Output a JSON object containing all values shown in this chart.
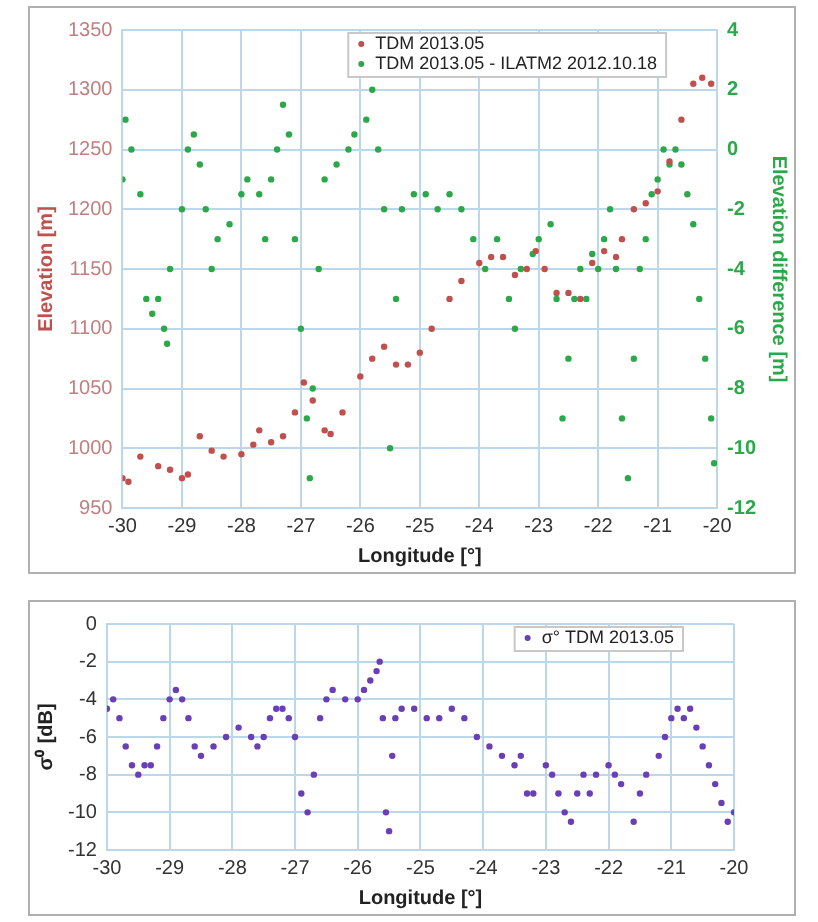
{
  "chart_data": [
    {
      "type": "scatter",
      "xlabel": "Longitude [°]",
      "ylabel": "Elevation [m]",
      "y2label": "Elevation difference [m]",
      "xlim": [
        -30,
        -20
      ],
      "xticks": [
        -30,
        -29,
        -28,
        -27,
        -26,
        -25,
        -24,
        -23,
        -22,
        -21,
        -20
      ],
      "ylim": [
        950,
        1350
      ],
      "yticks": [
        950,
        1000,
        1050,
        1100,
        1150,
        1200,
        1250,
        1300,
        1350
      ],
      "y2lim": [
        -12,
        4
      ],
      "y2ticks": [
        -12,
        -10,
        -8,
        -6,
        -4,
        -2,
        0,
        2,
        4
      ],
      "grid": true,
      "legend": "top right",
      "marker": "circle",
      "series": [
        {
          "name": "TDM 2013.05",
          "color": "#c0504d",
          "x": [
            -30,
            -29.9,
            -29.7,
            -29.4,
            -29.2,
            -29,
            -28.9,
            -28.7,
            -28.5,
            -28.3,
            -28,
            -27.8,
            -27.7,
            -27.5,
            -27.3,
            -27.1,
            -26.95,
            -26.8,
            -26.6,
            -26.5,
            -26.3,
            -26,
            -25.8,
            -25.6,
            -25.4,
            -25.2,
            -25,
            -24.8,
            -24.5,
            -24.3,
            -24,
            -23.8,
            -23.6,
            -23.4,
            -23.2,
            -23.05,
            -22.9,
            -22.7,
            -22.5,
            -22.3,
            -22.1,
            -21.9,
            -21.7,
            -21.6,
            -21.4,
            -21.2,
            -21,
            -20.8,
            -20.6,
            -20.4,
            -20.25,
            -20.1
          ],
          "values": [
            975,
            972,
            993,
            985,
            982,
            975,
            978,
            1010,
            998,
            993,
            995,
            1003,
            1015,
            1005,
            1010,
            1030,
            1055,
            1040,
            1015,
            1012,
            1030,
            1060,
            1075,
            1085,
            1070,
            1070,
            1080,
            1100,
            1125,
            1140,
            1155,
            1160,
            1160,
            1145,
            1150,
            1165,
            1150,
            1130,
            1130,
            1125,
            1155,
            1165,
            1160,
            1175,
            1200,
            1205,
            1215,
            1240,
            1275,
            1305,
            1310,
            1305
          ]
        },
        {
          "name": "TDM 2013.05 - ILATM2 2012.10.18",
          "color": "#2ca84a",
          "axis": "y2",
          "x": [
            -30,
            -29.95,
            -29.85,
            -29.7,
            -29.6,
            -29.5,
            -29.4,
            -29.3,
            -29.25,
            -29.2,
            -29,
            -28.9,
            -28.8,
            -28.7,
            -28.6,
            -28.5,
            -28.4,
            -28.2,
            -28,
            -27.9,
            -27.7,
            -27.6,
            -27.5,
            -27.4,
            -27.3,
            -27.2,
            -27.1,
            -27,
            -26.9,
            -26.85,
            -26.8,
            -26.7,
            -26.6,
            -26.4,
            -26.2,
            -26.1,
            -25.9,
            -25.8,
            -25.7,
            -25.6,
            -25.5,
            -25.4,
            -25.3,
            -25.1,
            -24.9,
            -24.7,
            -24.5,
            -24.3,
            -24.1,
            -23.9,
            -23.7,
            -23.5,
            -23.4,
            -23.3,
            -23.1,
            -23,
            -22.8,
            -22.7,
            -22.6,
            -22.5,
            -22.4,
            -22.3,
            -22.2,
            -22.1,
            -22,
            -21.9,
            -21.8,
            -21.7,
            -21.6,
            -21.5,
            -21.4,
            -21.3,
            -21.2,
            -21.1,
            -21,
            -20.9,
            -20.8,
            -20.7,
            -20.6,
            -20.5,
            -20.4,
            -20.3,
            -20.2,
            -20.1,
            -20.05
          ],
          "values": [
            -1,
            1,
            0,
            -1.5,
            -5,
            -5.5,
            -5,
            -6,
            -6.5,
            -4,
            -2,
            0,
            0.5,
            -0.5,
            -2,
            -4,
            -3,
            -2.5,
            -1.5,
            -1,
            -1.5,
            -3,
            -1,
            0,
            1.5,
            0.5,
            -3,
            -6,
            -9,
            -11,
            -8,
            -4,
            -1,
            -0.5,
            0,
            0.5,
            1,
            2,
            0,
            -2,
            -10,
            -5,
            -2,
            -1.5,
            -1.5,
            -2,
            -1.5,
            -2,
            -3,
            -4,
            -3,
            -5,
            -6,
            -4,
            -3.5,
            -3,
            -2.5,
            -5,
            -9,
            -7,
            -5,
            -4,
            -5,
            -3.5,
            -4,
            -3,
            -2,
            -4,
            -9,
            -11,
            -7,
            -4,
            -3,
            -1.5,
            -1,
            0,
            -0.5,
            0,
            -0.5,
            -1.5,
            -2.5,
            -5,
            -7,
            -9,
            -10.5
          ]
        }
      ]
    },
    {
      "type": "scatter",
      "xlabel": "Longitude [°]",
      "ylabel": "σ⁰ [dB]",
      "xlim": [
        -30,
        -20
      ],
      "xticks": [
        -30,
        -29,
        -28,
        -27,
        -26,
        -25,
        -24,
        -23,
        -22,
        -21,
        -20
      ],
      "ylim": [
        -12,
        0
      ],
      "yticks": [
        -12,
        -10,
        -8,
        -6,
        -4,
        -2,
        0
      ],
      "grid": true,
      "legend": "top right",
      "marker": "circle",
      "series": [
        {
          "name": "σ° TDM 2013.05",
          "color": "#6a3fb5",
          "x": [
            -30,
            -29.9,
            -29.8,
            -29.7,
            -29.6,
            -29.5,
            -29.4,
            -29.3,
            -29.2,
            -29.1,
            -29,
            -28.9,
            -28.8,
            -28.7,
            -28.6,
            -28.5,
            -28.3,
            -28.1,
            -27.9,
            -27.7,
            -27.6,
            -27.5,
            -27.4,
            -27.3,
            -27.2,
            -27.1,
            -27,
            -26.9,
            -26.8,
            -26.7,
            -26.6,
            -26.5,
            -26.4,
            -26.2,
            -26,
            -25.9,
            -25.8,
            -25.7,
            -25.65,
            -25.6,
            -25.55,
            -25.5,
            -25.45,
            -25.4,
            -25.3,
            -25.1,
            -24.9,
            -24.7,
            -24.5,
            -24.3,
            -24.1,
            -23.9,
            -23.7,
            -23.5,
            -23.4,
            -23.3,
            -23.2,
            -23,
            -22.9,
            -22.8,
            -22.7,
            -22.6,
            -22.5,
            -22.4,
            -22.3,
            -22.2,
            -22,
            -21.9,
            -21.8,
            -21.6,
            -21.5,
            -21.4,
            -21.2,
            -21.1,
            -21,
            -20.9,
            -20.8,
            -20.7,
            -20.6,
            -20.5,
            -20.4,
            -20.3,
            -20.2,
            -20.1,
            -20
          ],
          "values": [
            -4.5,
            -4,
            -5,
            -6.5,
            -7.5,
            -8,
            -7.5,
            -7.5,
            -6.5,
            -5,
            -4,
            -3.5,
            -4,
            -5,
            -6.5,
            -7,
            -6.5,
            -6,
            -5.5,
            -6,
            -6.5,
            -6,
            -5,
            -4.5,
            -4.5,
            -5,
            -6,
            -9,
            -10,
            -8,
            -5,
            -4,
            -3.5,
            -4,
            -4,
            -3.5,
            -3,
            -2.5,
            -2,
            -5,
            -10,
            -11,
            -7,
            -5,
            -4.5,
            -4.5,
            -5,
            -5,
            -4.5,
            -5,
            -6,
            -6.5,
            -7,
            -7.5,
            -7,
            -9,
            -9,
            -7.5,
            -8,
            -9,
            -10,
            -10.5,
            -9,
            -8,
            -9,
            -8,
            -7.5,
            -8,
            -8.5,
            -10.5,
            -9,
            -8,
            -7,
            -6,
            -5,
            -4.5,
            -5,
            -4.5,
            -5.5,
            -6.5,
            -7.5,
            -8.5,
            -9.5,
            -10.5,
            -10
          ]
        }
      ]
    }
  ]
}
